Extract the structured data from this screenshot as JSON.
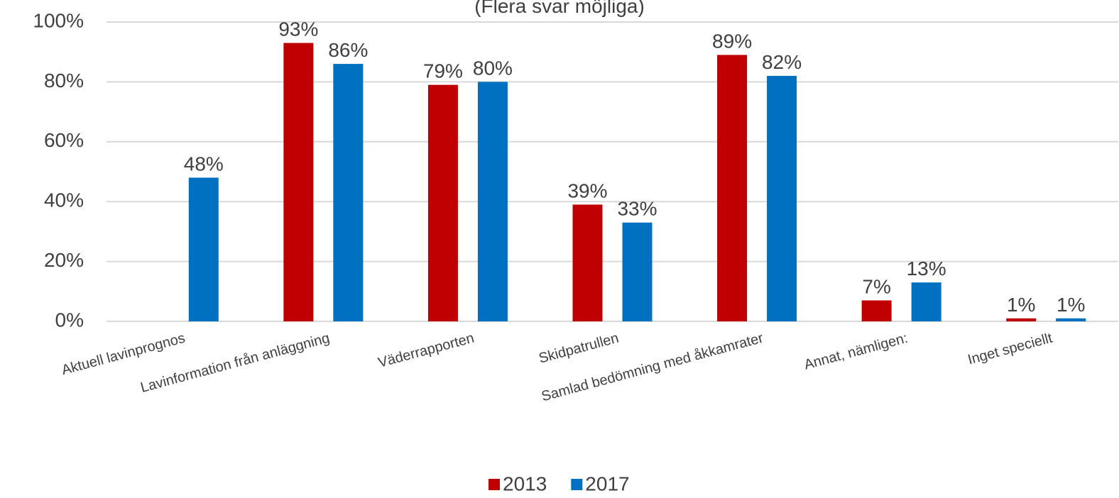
{
  "chart_data": {
    "type": "bar",
    "subtitle": "(Flera svar möjliga)",
    "categories": [
      "Aktuell lavinprognos",
      "Lavinformation från anläggning",
      "Väderrapporten",
      "Skidpatrullen",
      "Samlad bedömning med åkkamrater",
      "Annat, nämligen:",
      "Inget speciellt"
    ],
    "series": [
      {
        "name": "2013",
        "color": "#c00000",
        "values": [
          null,
          93,
          79,
          39,
          89,
          7,
          1
        ],
        "value_labels": [
          null,
          "93%",
          "79%",
          "39%",
          "89%",
          "7%",
          "1%"
        ]
      },
      {
        "name": "2017",
        "color": "#0070c0",
        "values": [
          48,
          86,
          80,
          33,
          82,
          13,
          1
        ],
        "value_labels": [
          "48%",
          "86%",
          "80%",
          "33%",
          "82%",
          "13%",
          "1%"
        ]
      }
    ],
    "ylim": [
      0,
      100
    ],
    "yticks": [
      {
        "value": 0,
        "label": "0%"
      },
      {
        "value": 20,
        "label": "20%"
      },
      {
        "value": 40,
        "label": "40%"
      },
      {
        "value": 60,
        "label": "60%"
      },
      {
        "value": 80,
        "label": "80%"
      },
      {
        "value": 100,
        "label": "100%"
      }
    ],
    "grid": true,
    "legend": "bottom"
  }
}
